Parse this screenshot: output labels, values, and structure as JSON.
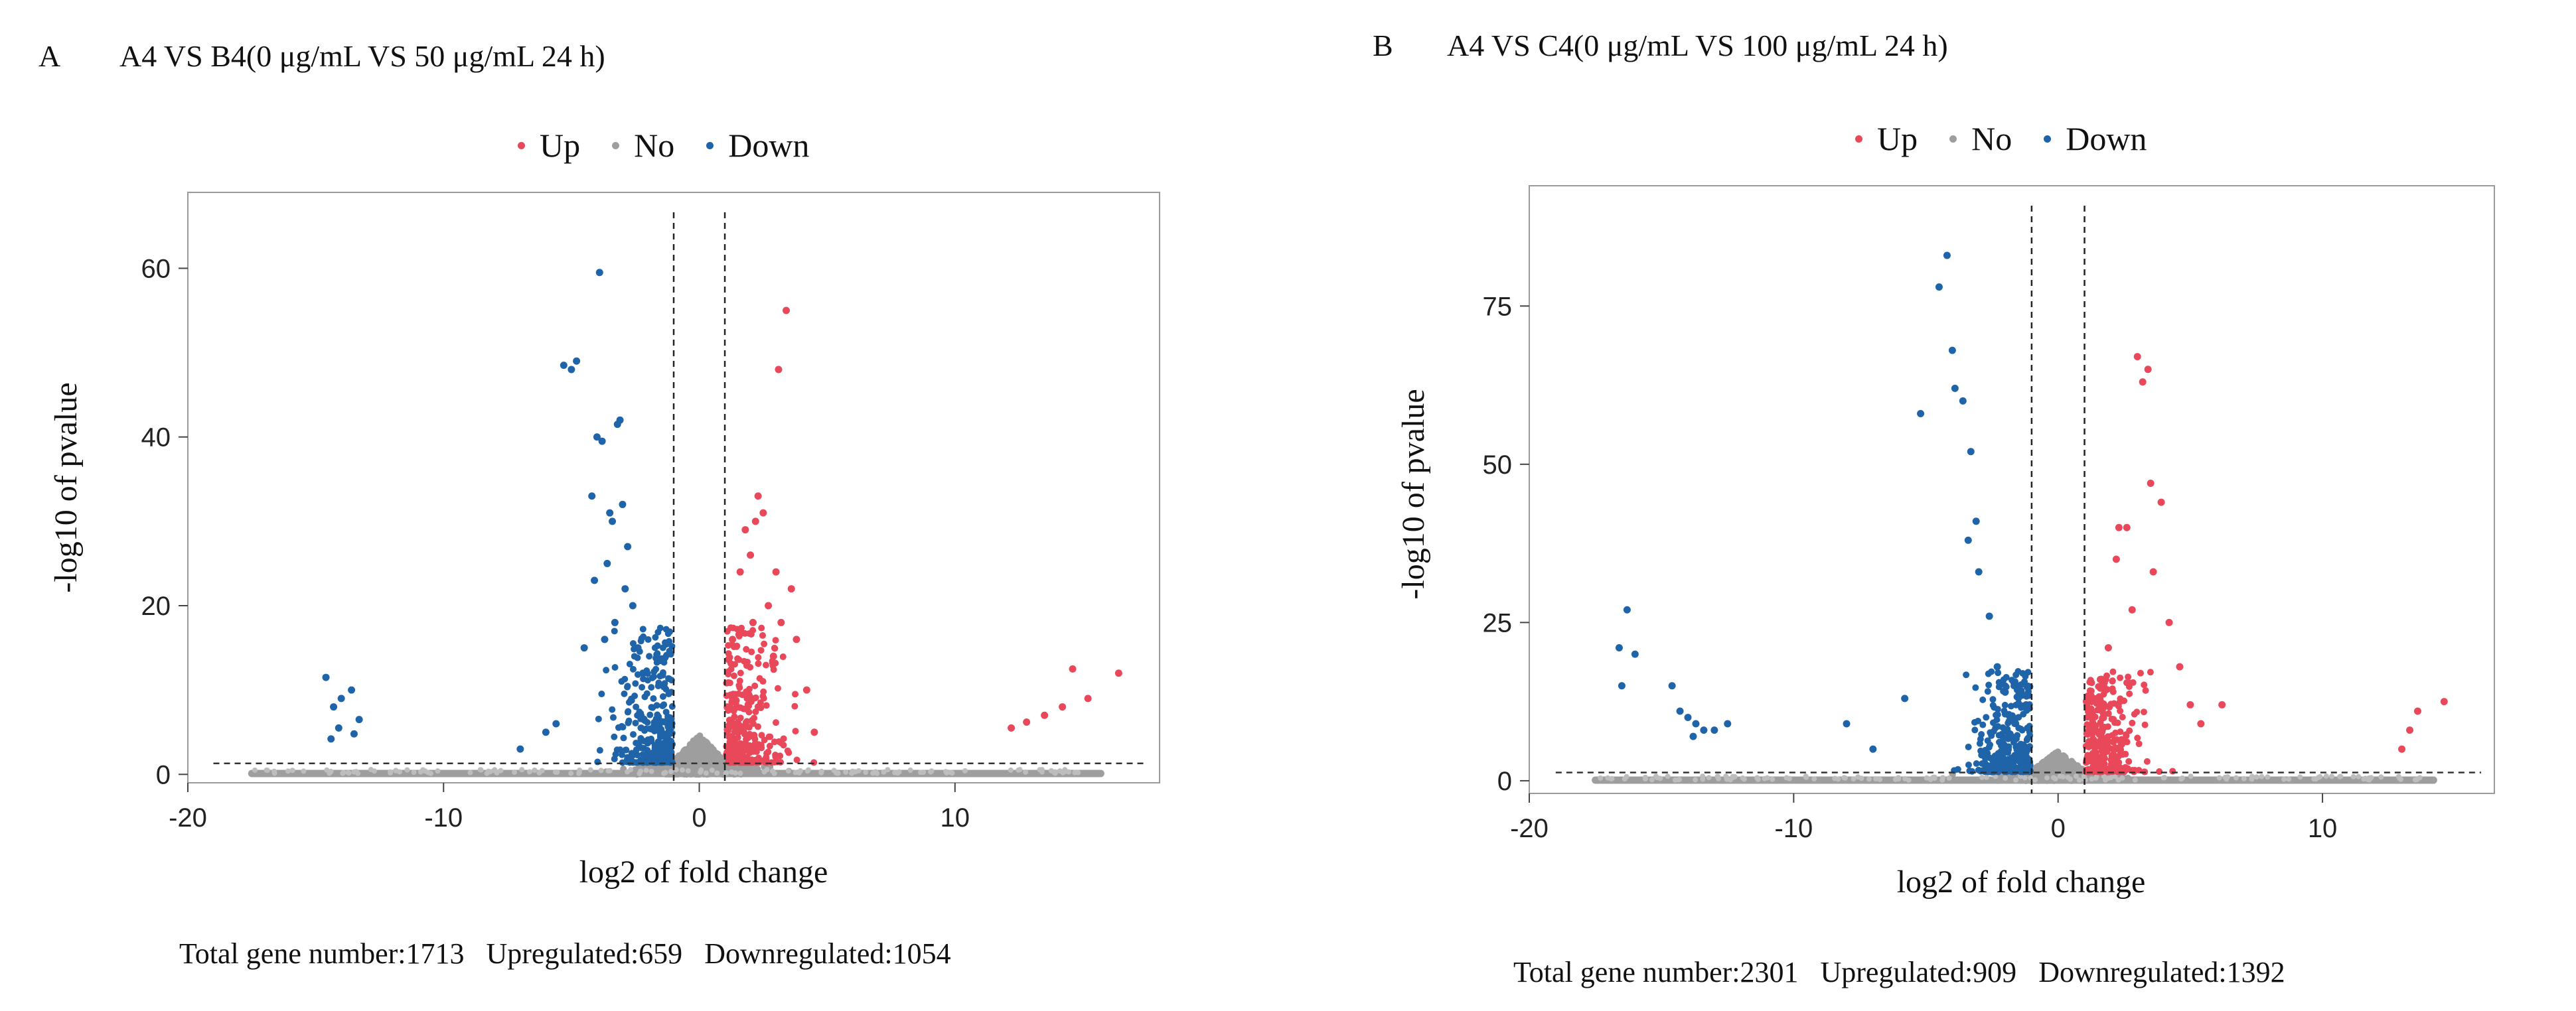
{
  "legend": {
    "up": {
      "label": "Up",
      "color": "#e8485a"
    },
    "no": {
      "label": "No",
      "color": "#9e9e9e"
    },
    "down": {
      "label": "Down",
      "color": "#1f63a8"
    }
  },
  "chart_data": [
    {
      "type": "scatter",
      "panel": "A",
      "title": "A4 VS B4(0 μg/mL VS 50 μg/mL  24 h)",
      "xlabel": "log2 of fold change",
      "ylabel": "-log10 of pvalue",
      "xlim": [
        -20,
        18
      ],
      "ylim": [
        -1,
        69
      ],
      "xticks": [
        -20,
        -10,
        0,
        10
      ],
      "yticks": [
        0,
        20,
        40,
        60
      ],
      "fc_threshold": [
        -1,
        1
      ],
      "pvalue_threshold": 1.3,
      "legend_position": "top-center",
      "grid": false,
      "summary": {
        "total": "Total gene number:1713",
        "up": "Upregulated:659",
        "down": "Downregulated:1054"
      },
      "series": [
        {
          "name": "Down",
          "points": [
            [
              -14.6,
              11.5
            ],
            [
              -14.3,
              8.0
            ],
            [
              -14.0,
              9.0
            ],
            [
              -13.6,
              10.0
            ],
            [
              -13.3,
              6.5
            ],
            [
              -14.1,
              5.5
            ],
            [
              -13.5,
              4.8
            ],
            [
              -14.4,
              4.2
            ],
            [
              -7,
              3
            ],
            [
              -6,
              5
            ],
            [
              -5.6,
              6
            ],
            [
              -5.3,
              48.5
            ],
            [
              -5,
              48
            ],
            [
              -4.8,
              49
            ],
            [
              -4.2,
              33
            ],
            [
              -4.1,
              23
            ],
            [
              -4.0,
              40
            ],
            [
              -3.8,
              39.5
            ],
            [
              -3.9,
              59.5
            ],
            [
              -3.5,
              31
            ],
            [
              -3.4,
              30
            ],
            [
              -3.1,
              42
            ],
            [
              -3.2,
              41.5
            ],
            [
              -3.0,
              32
            ],
            [
              -2.8,
              27
            ],
            [
              -2.9,
              22
            ],
            [
              -2.6,
              20
            ],
            [
              -3.6,
              25
            ],
            [
              -3.3,
              18
            ],
            [
              -3.7,
              16
            ],
            [
              -4.5,
              15
            ],
            [
              -2.4,
              15
            ],
            [
              -2.2,
              12
            ]
          ]
        },
        {
          "name": "Up",
          "points": [
            [
              1.1,
              8
            ],
            [
              1.3,
              16
            ],
            [
              1.6,
              24
            ],
            [
              1.8,
              29
            ],
            [
              2.0,
              26
            ],
            [
              2.2,
              30
            ],
            [
              2.3,
              33
            ],
            [
              2.5,
              31
            ],
            [
              2.1,
              18
            ],
            [
              2.7,
              20
            ],
            [
              3.0,
              24
            ],
            [
              2.9,
              14
            ],
            [
              3.2,
              18
            ],
            [
              3.1,
              48
            ],
            [
              3.4,
              55
            ],
            [
              3.6,
              22
            ],
            [
              3.8,
              16
            ],
            [
              4.2,
              10
            ],
            [
              4.5,
              5
            ],
            [
              12.2,
              5.5
            ],
            [
              12.8,
              6.2
            ],
            [
              13.5,
              7
            ],
            [
              14.2,
              8
            ],
            [
              14.6,
              12.5
            ],
            [
              15.2,
              9
            ],
            [
              16.4,
              12
            ]
          ]
        },
        {
          "name": "No",
          "points": []
        }
      ]
    },
    {
      "type": "scatter",
      "panel": "B",
      "title": "A4 VS C4(0 μg/mL VS 100 μg/mL   24 h)",
      "xlabel": "log2 of fold change",
      "ylabel": "-log10 of pvalue",
      "xlim": [
        -20,
        16.5
      ],
      "ylim": [
        -2,
        94
      ],
      "xticks": [
        -20,
        -10,
        0,
        10
      ],
      "yticks": [
        0,
        25,
        50,
        75
      ],
      "fc_threshold": [
        -1,
        1
      ],
      "pvalue_threshold": 1.3,
      "legend_position": "top-center",
      "grid": false,
      "summary": {
        "total": "Total gene number:2301",
        "up": "Upregulated:909",
        "down": "Downregulated:1392"
      },
      "series": [
        {
          "name": "Down",
          "points": [
            [
              -16.3,
              27
            ],
            [
              -16.6,
              21
            ],
            [
              -16.0,
              20
            ],
            [
              -16.5,
              15
            ],
            [
              -14.6,
              15
            ],
            [
              -14.3,
              11
            ],
            [
              -14.0,
              10
            ],
            [
              -13.7,
              9
            ],
            [
              -13.4,
              8
            ],
            [
              -13.0,
              8
            ],
            [
              -13.8,
              7
            ],
            [
              -12.5,
              9
            ],
            [
              -8,
              9
            ],
            [
              -7,
              5
            ],
            [
              -5.8,
              13
            ],
            [
              -5.2,
              58
            ],
            [
              -4.5,
              78
            ],
            [
              -4.2,
              83
            ],
            [
              -4.0,
              68
            ],
            [
              -3.9,
              62
            ],
            [
              -3.6,
              60
            ],
            [
              -3.3,
              52
            ],
            [
              -3.1,
              41
            ],
            [
              -3.4,
              38
            ],
            [
              -3.0,
              33
            ],
            [
              -2.6,
              26
            ],
            [
              -2.3,
              18
            ],
            [
              -2.0,
              14
            ]
          ]
        },
        {
          "name": "Up",
          "points": [
            [
              1.3,
              10
            ],
            [
              1.6,
              16
            ],
            [
              1.9,
              21
            ],
            [
              2.2,
              35
            ],
            [
              2.3,
              40
            ],
            [
              2.6,
              40
            ],
            [
              2.8,
              27
            ],
            [
              3.0,
              67
            ],
            [
              3.2,
              63
            ],
            [
              3.4,
              65
            ],
            [
              3.5,
              47
            ],
            [
              3.9,
              44
            ],
            [
              3.6,
              33
            ],
            [
              4.2,
              25
            ],
            [
              4.6,
              18
            ],
            [
              5.0,
              12
            ],
            [
              5.4,
              9
            ],
            [
              6.2,
              12
            ],
            [
              13.0,
              5
            ],
            [
              13.3,
              8
            ],
            [
              13.6,
              11
            ],
            [
              14.6,
              12.5
            ]
          ]
        },
        {
          "name": "No",
          "points": []
        }
      ]
    }
  ]
}
